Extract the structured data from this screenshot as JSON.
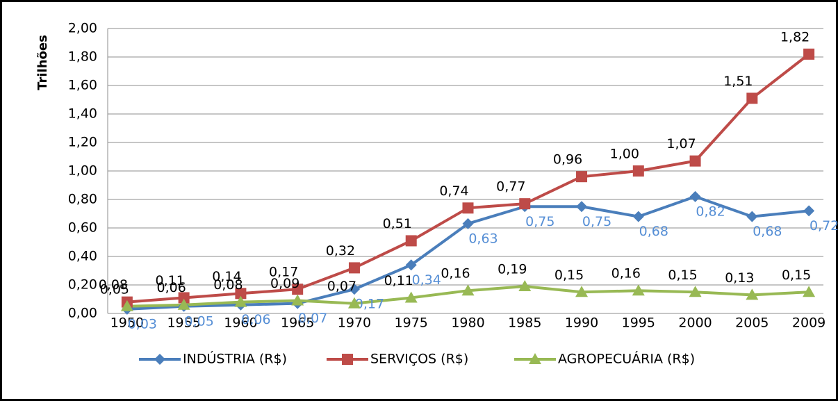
{
  "chart_data": {
    "type": "line",
    "y_label": "Trilhões",
    "categories": [
      "1950",
      "1955",
      "1960",
      "1965",
      "1970",
      "1975",
      "1980",
      "1985",
      "1990",
      "1995",
      "2000",
      "2005",
      "2009"
    ],
    "ylim": [
      0,
      2
    ],
    "yticks": [
      {
        "value": 0,
        "label": "0,00"
      },
      {
        "value": 0.2,
        "label": "0,20"
      },
      {
        "value": 0.4,
        "label": "0,40"
      },
      {
        "value": 0.6,
        "label": "0,60"
      },
      {
        "value": 0.8,
        "label": "0,80"
      },
      {
        "value": 1,
        "label": "1,00"
      },
      {
        "value": 1.2,
        "label": "1,20"
      },
      {
        "value": 1.4,
        "label": "1,40"
      },
      {
        "value": 1.6,
        "label": "1,60"
      },
      {
        "value": 1.8,
        "label": "1,80"
      },
      {
        "value": 2,
        "label": "2,00"
      }
    ],
    "grid": true,
    "legend": "bottom",
    "series": [
      {
        "name": "INDÚSTRIA (R$)",
        "color": "#4a7ebb",
        "label_color": "#558ed5",
        "marker": "diamond",
        "values": [
          0.03,
          0.05,
          0.06,
          0.07,
          0.17,
          0.34,
          0.63,
          0.75,
          0.75,
          0.68,
          0.82,
          0.68,
          0.72
        ],
        "value_labels": [
          "0,03",
          "0,05",
          "0,06",
          "0,07",
          "0,17",
          "0,34",
          "0,63",
          "0,75",
          "0,75",
          "0,68",
          "0,82",
          "0,68",
          "0,72"
        ]
      },
      {
        "name": "SERVIÇOS (R$)",
        "color": "#be4b48",
        "label_color": "#000000",
        "marker": "square",
        "values": [
          0.08,
          0.11,
          0.14,
          0.17,
          0.32,
          0.51,
          0.74,
          0.77,
          0.96,
          1.0,
          1.07,
          1.51,
          1.82
        ],
        "value_labels": [
          "0,08",
          "0,11",
          "0,14",
          "0,17",
          "0,32",
          "0,51",
          "0,74",
          "0,77",
          "0,96",
          "1,00",
          "1,07",
          "1,51",
          "1,82"
        ]
      },
      {
        "name": "AGROPECUÁRIA (R$)",
        "color": "#98b954",
        "label_color": "#000000",
        "marker": "triangle",
        "values": [
          0.05,
          0.06,
          0.08,
          0.09,
          0.07,
          0.11,
          0.16,
          0.19,
          0.15,
          0.16,
          0.15,
          0.13,
          0.15
        ],
        "value_labels": [
          "0,05",
          "0,06",
          "0,08",
          "0,09",
          "0,07",
          "0,11",
          "0,16",
          "0,19",
          "0,15",
          "0,16",
          "0,15",
          "0,13",
          "0,15"
        ]
      }
    ]
  }
}
